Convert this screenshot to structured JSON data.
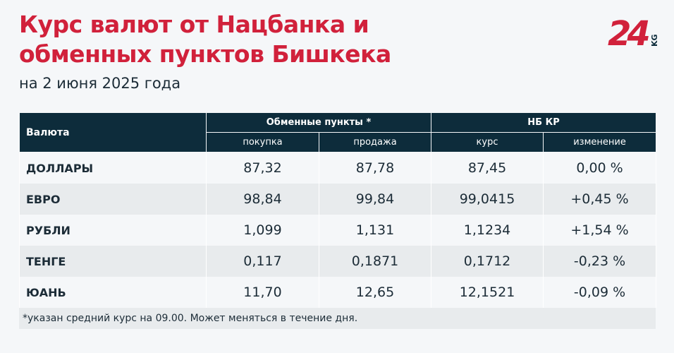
{
  "title_line1": "Курс валют от Нацбанка и",
  "title_line2": "обменных пунктов Бишкека",
  "subtitle": "на 2 июня 2025 года",
  "logo": {
    "text": "24",
    "suffix": "KG",
    "color": "#d1213b",
    "suffix_color": "#0d2c3b"
  },
  "colors": {
    "accent": "#d1213b",
    "header_bg": "#0d2c3b",
    "stripe": "#e8ebed"
  },
  "table": {
    "header_currency": "Валюта",
    "group_exchange": "Обменные пункты *",
    "group_nbkr": "НБ КР",
    "sub": [
      "покупка",
      "продажа",
      "курс",
      "изменение"
    ],
    "rows": [
      {
        "name": "ДОЛЛАРЫ",
        "buy": "87,32",
        "sell": "87,78",
        "rate": "87,45",
        "change": "0,00 %"
      },
      {
        "name": "ЕВРО",
        "buy": "98,84",
        "sell": "99,84",
        "rate": "99,0415",
        "change": "+0,45 %"
      },
      {
        "name": "РУБЛИ",
        "buy": "1,099",
        "sell": "1,131",
        "rate": "1,1234",
        "change": "+1,54 %"
      },
      {
        "name": "ТЕНГЕ",
        "buy": "0,117",
        "sell": "0,1871",
        "rate": "0,1712",
        "change": "-0,23 %"
      },
      {
        "name": "ЮАНЬ",
        "buy": "11,70",
        "sell": "12,65",
        "rate": "12,1521",
        "change": "-0,09 %"
      }
    ]
  },
  "footnote": "*указан средний курс на 09.00. Может меняться в течение дня."
}
